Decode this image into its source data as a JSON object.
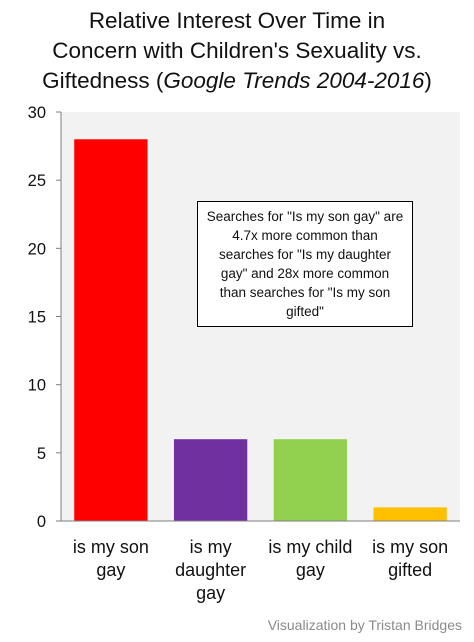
{
  "title": {
    "line1": "Relative  Interest Over Time in",
    "line2": "Concern with Children's Sexuality vs.",
    "line3_prefix": "Giftedness (",
    "line3_italic": "Google Trends 2004-2016",
    "line3_suffix": ")"
  },
  "annotation": "Searches for \"Is my son gay\" are 4.7x more common than searches for \"Is my daughter gay\" and 28x more common than searches for \"Is my son gifted\"",
  "credit": "Visualization by Tristan Bridges",
  "chart_data": {
    "type": "bar",
    "title": "Relative  Interest Over Time in Concern with Children's Sexuality vs. Giftedness (Google Trends 2004-2016)",
    "xlabel": "",
    "ylabel": "",
    "ylim": [
      0,
      30
    ],
    "yticks": [
      0,
      5,
      10,
      15,
      20,
      25,
      30
    ],
    "grid": false,
    "categories": [
      [
        "is my son",
        "gay"
      ],
      [
        "is my",
        "daughter",
        "gay"
      ],
      [
        "is my child",
        "gay"
      ],
      [
        "is my son",
        "gifted"
      ]
    ],
    "values": [
      28,
      6,
      6,
      1
    ],
    "colors": [
      "#ff0000",
      "#7030a0",
      "#92d050",
      "#ffc000"
    ],
    "plot_background": "#f2f2f2"
  }
}
